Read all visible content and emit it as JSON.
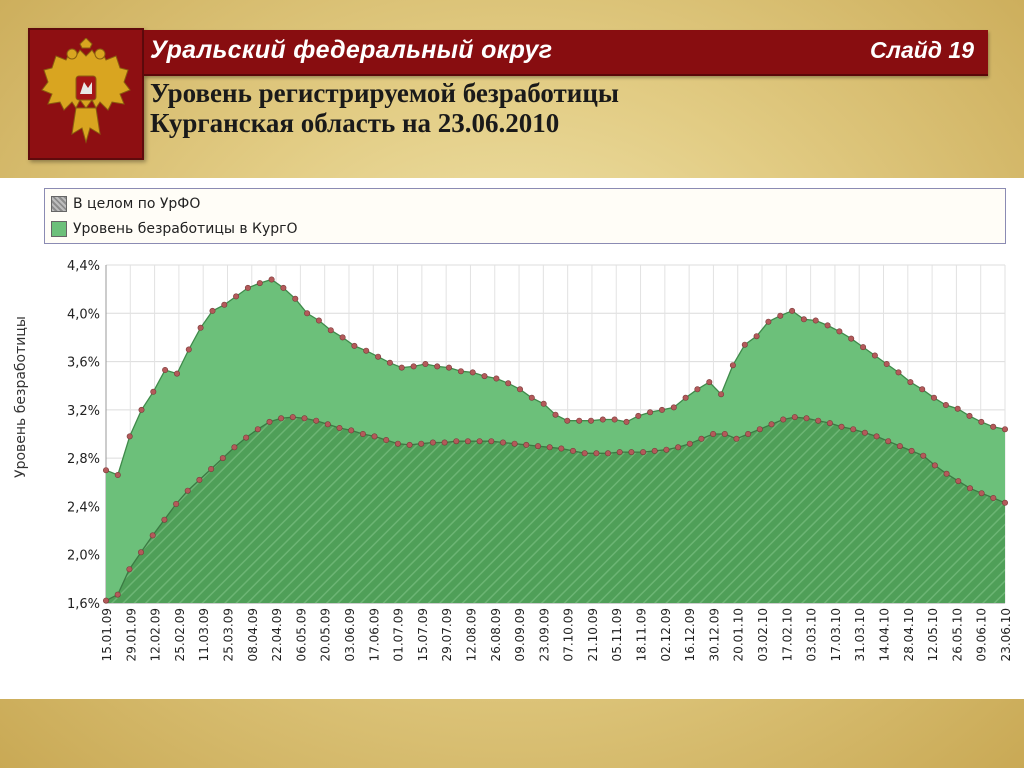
{
  "header": {
    "region": "Уральский федеральный округ",
    "slide": "Слайд 19"
  },
  "subtitle": {
    "line1": "Уровень регистрируемой безработицы",
    "line2": "Курганская область на 23.06.2010"
  },
  "emblem": {
    "icon": "double-headed-eagle-icon",
    "color": "#d9a520"
  },
  "colors": {
    "kurgo_fill": "#6cc07a",
    "kurgo_line": "#3f8a4a",
    "urfo_fill": "#4f9f58",
    "marker": "#b35a5a"
  },
  "chart_data": {
    "type": "area",
    "ylabel": "Уровень безработицы",
    "xlabel": "",
    "ylim": [
      1.6,
      4.4
    ],
    "yticks": [
      "1,6%",
      "2,0%",
      "2,4%",
      "2,8%",
      "3,2%",
      "3,6%",
      "4,0%",
      "4,4%"
    ],
    "grid": true,
    "legend_position": "top",
    "x_labels": [
      "15.01.09",
      "29.01.09",
      "12.02.09",
      "25.02.09",
      "11.03.09",
      "25.03.09",
      "08.04.09",
      "22.04.09",
      "06.05.09",
      "20.05.09",
      "03.06.09",
      "17.06.09",
      "01.07.09",
      "15.07.09",
      "29.07.09",
      "12.08.09",
      "26.08.09",
      "09.09.09",
      "23.09.09",
      "07.10.09",
      "21.10.09",
      "05.11.09",
      "18.11.09",
      "02.12.09",
      "16.12.09",
      "30.12.09",
      "20.01.10",
      "03.02.10",
      "17.02.10",
      "03.03.10",
      "17.03.10",
      "31.03.10",
      "14.04.10",
      "28.04.10",
      "12.05.10",
      "26.05.10",
      "09.06.10",
      "23.06.10"
    ],
    "series": [
      {
        "name": "В целом по УрФО",
        "values": [
          1.62,
          1.67,
          1.88,
          2.02,
          2.16,
          2.29,
          2.42,
          2.53,
          2.62,
          2.71,
          2.8,
          2.89,
          2.97,
          3.04,
          3.1,
          3.13,
          3.14,
          3.13,
          3.11,
          3.08,
          3.05,
          3.03,
          3.0,
          2.98,
          2.95,
          2.92,
          2.91,
          2.92,
          2.93,
          2.93,
          2.94,
          2.94,
          2.94,
          2.94,
          2.93,
          2.92,
          2.91,
          2.9,
          2.89,
          2.88,
          2.86,
          2.84,
          2.84,
          2.84,
          2.85,
          2.85,
          2.85,
          2.86,
          2.87,
          2.89,
          2.92,
          2.96,
          3.0,
          3.0,
          2.96,
          3.0,
          3.04,
          3.08,
          3.12,
          3.14,
          3.13,
          3.11,
          3.09,
          3.06,
          3.04,
          3.01,
          2.98,
          2.94,
          2.9,
          2.86,
          2.82,
          2.74,
          2.67,
          2.61,
          2.55,
          2.51,
          2.47,
          2.43
        ]
      },
      {
        "name": "Уровень безработицы в КургО",
        "values": [
          2.7,
          2.66,
          2.98,
          3.2,
          3.35,
          3.53,
          3.5,
          3.7,
          3.88,
          4.02,
          4.07,
          4.14,
          4.21,
          4.25,
          4.28,
          4.21,
          4.12,
          4.0,
          3.94,
          3.86,
          3.8,
          3.73,
          3.69,
          3.64,
          3.59,
          3.55,
          3.56,
          3.58,
          3.56,
          3.55,
          3.52,
          3.51,
          3.48,
          3.46,
          3.42,
          3.37,
          3.3,
          3.25,
          3.16,
          3.11,
          3.11,
          3.11,
          3.12,
          3.12,
          3.1,
          3.15,
          3.18,
          3.2,
          3.22,
          3.3,
          3.37,
          3.43,
          3.33,
          3.57,
          3.74,
          3.81,
          3.93,
          3.98,
          4.02,
          3.95,
          3.94,
          3.9,
          3.85,
          3.79,
          3.72,
          3.65,
          3.58,
          3.51,
          3.43,
          3.37,
          3.3,
          3.24,
          3.21,
          3.15,
          3.1,
          3.06,
          3.04
        ]
      }
    ]
  }
}
